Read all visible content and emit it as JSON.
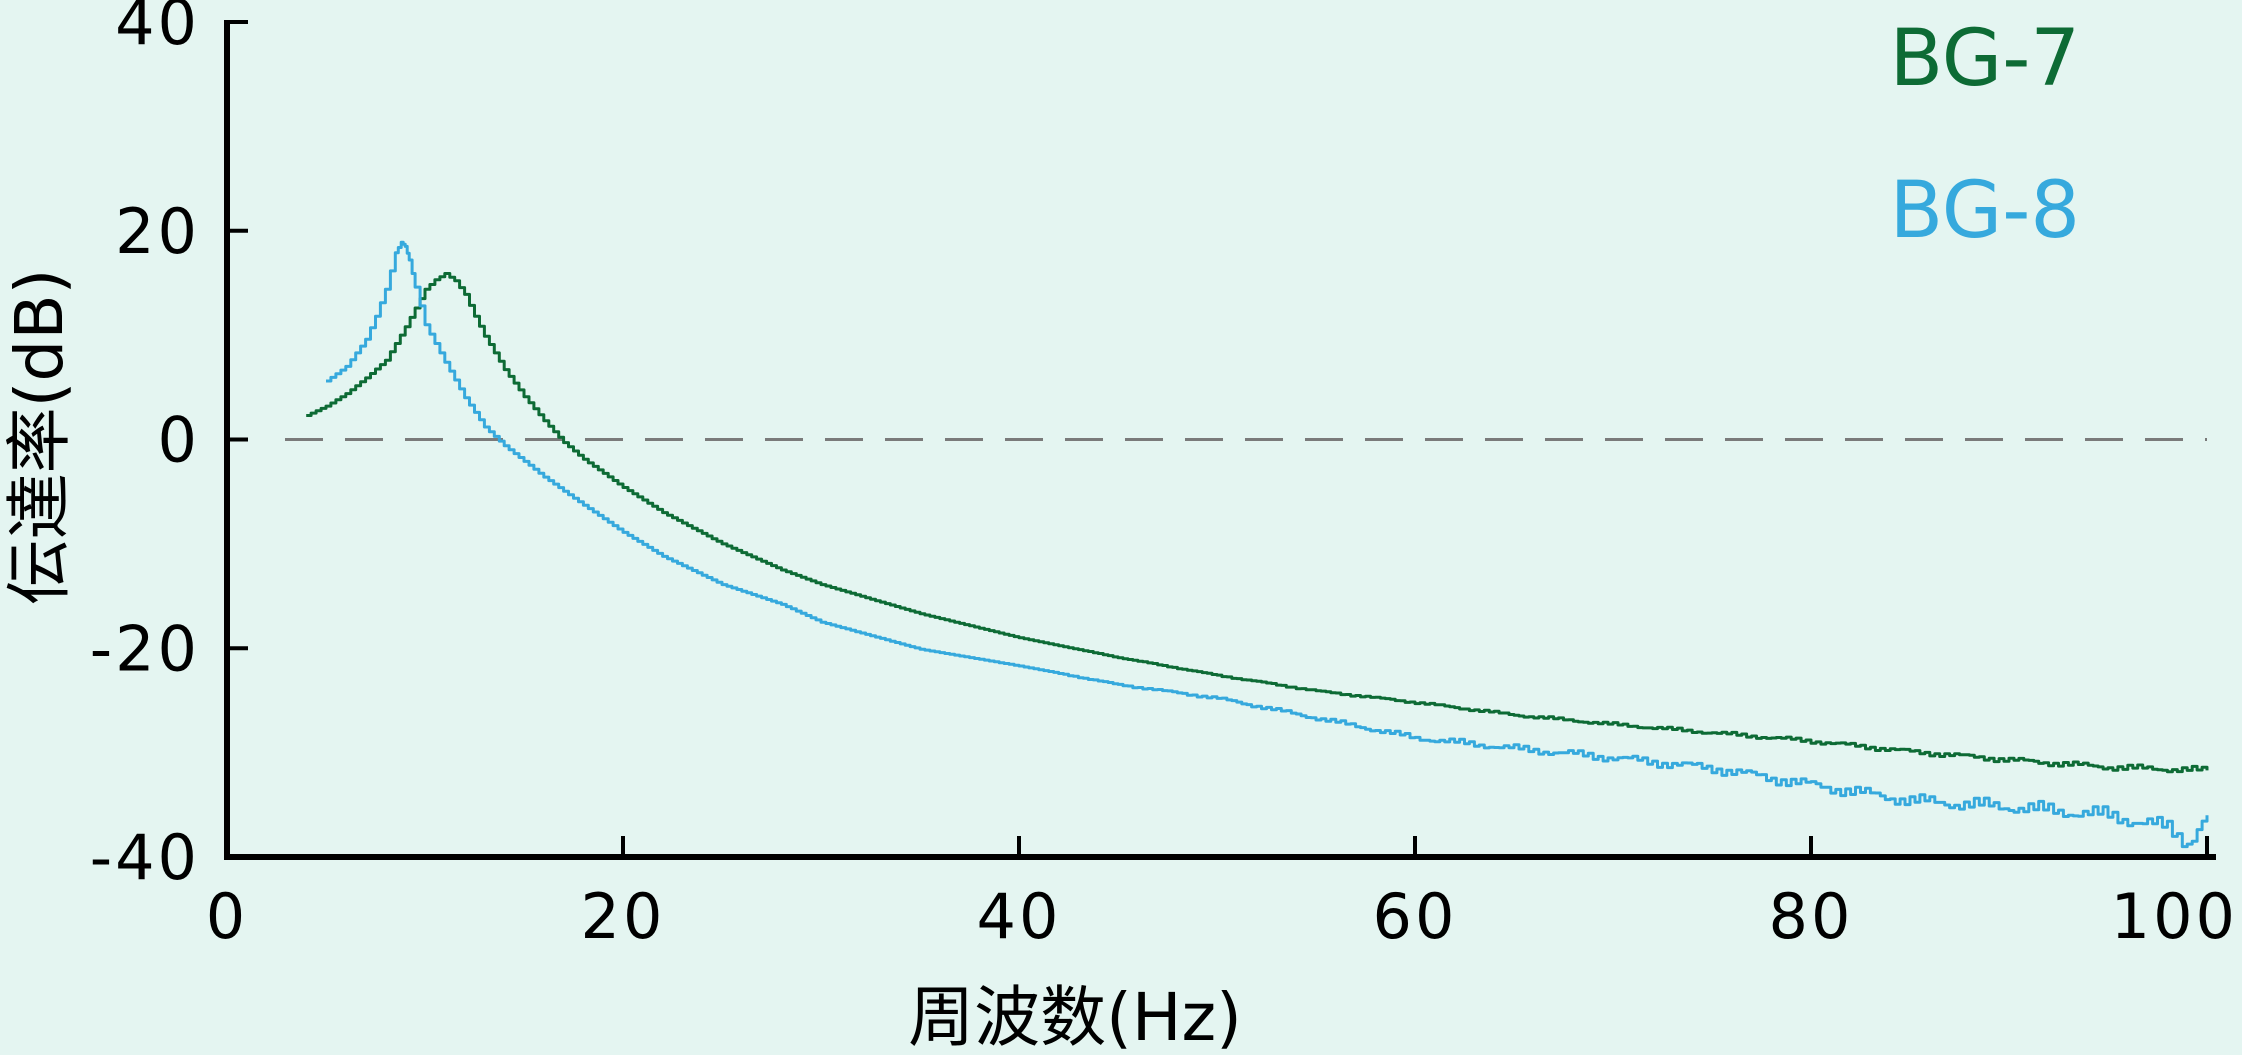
{
  "chart_data": {
    "type": "line",
    "title": "",
    "xlabel": "周波数(Hz)",
    "ylabel": "伝達率(dB)",
    "xlim": [
      0,
      100
    ],
    "ylim": [
      -40,
      40
    ],
    "xticks": [
      "0",
      "20",
      "40",
      "60",
      "80",
      "100"
    ],
    "yticks": [
      "40",
      "20",
      "0",
      "-20",
      "-40"
    ],
    "xtick_values": [
      0,
      20,
      40,
      60,
      80,
      100
    ],
    "ytick_values": [
      40,
      20,
      0,
      -20,
      -40
    ],
    "reference_line": {
      "y": 0,
      "style": "dashed",
      "color": "#7a7a7a"
    },
    "grid": false,
    "legend_position": "top-right",
    "series": [
      {
        "name": "BG-7",
        "color": "#0d6b35",
        "x": [
          4,
          5,
          6,
          7,
          8,
          9,
          10,
          10.5,
          11,
          11.5,
          12,
          12.5,
          13,
          14,
          15,
          16,
          17,
          18,
          20,
          22,
          25,
          28,
          30,
          35,
          40,
          45,
          50,
          55,
          60,
          65,
          70,
          75,
          80,
          85,
          90,
          95,
          100
        ],
        "y": [
          2.3,
          3.2,
          4.4,
          5.9,
          7.6,
          10.8,
          14.4,
          15.3,
          15.9,
          15.2,
          13.9,
          11.8,
          9.9,
          6.7,
          4.1,
          1.8,
          -0.3,
          -1.9,
          -4.6,
          -7.0,
          -10.0,
          -12.5,
          -13.9,
          -16.7,
          -19.0,
          -20.9,
          -22.6,
          -24.1,
          -25.2,
          -26.4,
          -27.3,
          -28.1,
          -28.9,
          -29.9,
          -30.7,
          -31.4,
          -31.7
        ]
      },
      {
        "name": "BG-8",
        "color": "#36a9dd",
        "x": [
          5,
          6,
          7,
          7.5,
          8,
          8.5,
          8.8,
          9,
          9.2,
          9.5,
          10,
          11,
          12,
          13,
          14,
          16,
          18,
          20,
          22,
          25,
          28,
          30,
          35,
          40,
          45,
          50,
          55,
          60,
          65,
          70,
          75,
          80,
          85,
          90,
          95,
          98,
          99,
          100
        ],
        "y": [
          5.6,
          7.0,
          9.6,
          11.8,
          14.4,
          17.9,
          18.9,
          18.5,
          17.2,
          14.6,
          11.0,
          7.4,
          4.0,
          1.2,
          -0.6,
          -3.6,
          -6.3,
          -8.9,
          -11.2,
          -13.9,
          -15.8,
          -17.5,
          -20.1,
          -21.7,
          -23.5,
          -24.8,
          -26.7,
          -28.6,
          -29.6,
          -30.5,
          -31.5,
          -33.1,
          -34.6,
          -35.2,
          -36.0,
          -37.2,
          -38.6,
          -36.0
        ]
      }
    ]
  }
}
